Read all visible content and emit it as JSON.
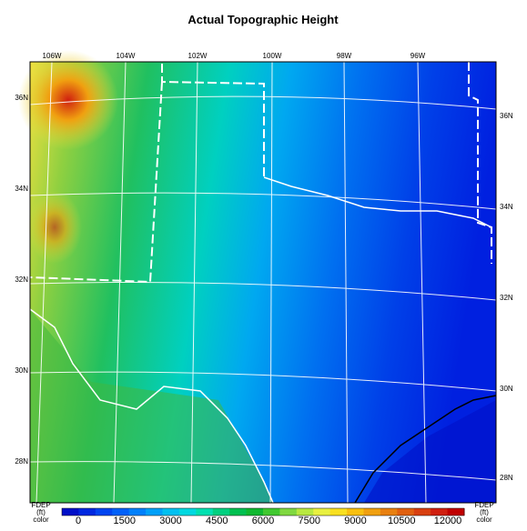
{
  "title": "Actual Topographic Height",
  "lon_labels": [
    "106W",
    "104W",
    "102W",
    "100W",
    "98W",
    "96W"
  ],
  "lat_labels_left": [
    "36N",
    "34N",
    "32N",
    "30N",
    "28N"
  ],
  "lat_labels_right": [
    "36N",
    "34N",
    "32N",
    "30N",
    "28N"
  ],
  "colorbar": {
    "left": [
      "FDEP",
      "(ft)",
      "color"
    ],
    "right": [
      "FDEP",
      "(ft)",
      "color"
    ],
    "ticks": [
      "0",
      "1500",
      "3000",
      "4500",
      "6000",
      "7500",
      "9000",
      "10500",
      "12000"
    ],
    "colors": [
      "#0010c8",
      "#0028e0",
      "#0044f0",
      "#0060f8",
      "#0080fa",
      "#00a0f8",
      "#00c0f0",
      "#00d8e0",
      "#00e0b0",
      "#00d080",
      "#00c050",
      "#10b830",
      "#40c830",
      "#80d840",
      "#b8e840",
      "#e8f040",
      "#f8e020",
      "#f8c010",
      "#f0a010",
      "#e88010",
      "#e06010",
      "#d84010",
      "#d02010",
      "#c00000"
    ]
  }
}
